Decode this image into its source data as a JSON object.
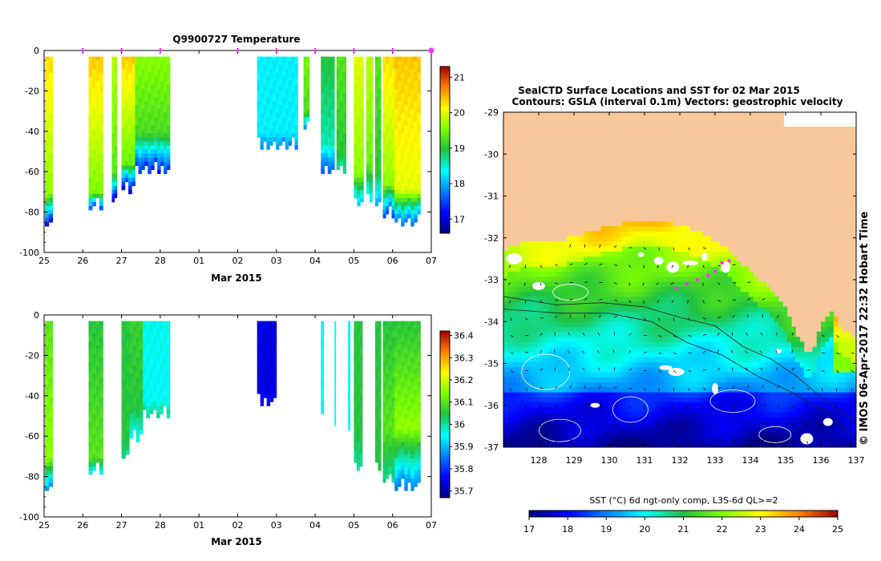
{
  "chart_data": [
    {
      "id": "temp",
      "type": "heatmap",
      "title": "Q9900727  Temperature",
      "xlabel": "Mar 2015",
      "ylabel": "",
      "xticks": [
        "25",
        "26",
        "27",
        "28",
        "01",
        "02",
        "03",
        "04",
        "05",
        "06",
        "07"
      ],
      "xlim": [
        0,
        10
      ],
      "ylim": [
        -100,
        0
      ],
      "yticks": [
        0,
        -20,
        -40,
        -60,
        -80,
        -100
      ],
      "colorbar": {
        "min": 16.6,
        "max": 21.3,
        "ticks": [
          17,
          18,
          19,
          20,
          21
        ]
      },
      "surface_markers": [
        1.0,
        2.0,
        3.0,
        5.0,
        6.0,
        7.0,
        8.0,
        9.0,
        10.0
      ],
      "profiles": [
        {
          "x0": 0.02,
          "x1": 0.22,
          "surface": 20.3,
          "mid": 19.6,
          "mld": -70,
          "bottom": 17.0,
          "depth": -84
        },
        {
          "x0": 1.15,
          "x1": 1.52,
          "surface": 20.4,
          "mid": 19.5,
          "mld": -70,
          "bottom": 17.5,
          "depth": -76
        },
        {
          "x0": 1.75,
          "x1": 1.88,
          "surface": 19.8,
          "mid": 19.3,
          "mld": -60,
          "bottom": 16.8,
          "depth": -74
        },
        {
          "x0": 2.0,
          "x1": 2.35,
          "surface": 20.4,
          "mid": 19.4,
          "mld": -55,
          "bottom": 17.0,
          "depth": -68
        },
        {
          "x0": 2.35,
          "x1": 3.25,
          "surface": 19.6,
          "mid": 19.2,
          "mld": -40,
          "bottom": 17.3,
          "depth": -58
        },
        {
          "x0": 5.5,
          "x1": 6.55,
          "surface": 18.3,
          "mid": 18.3,
          "mld": -40,
          "bottom": 17.8,
          "depth": -46
        },
        {
          "x0": 6.7,
          "x1": 6.85,
          "surface": 19.5,
          "mid": 19.2,
          "mld": -30,
          "bottom": 17.8,
          "depth": -35
        },
        {
          "x0": 7.15,
          "x1": 7.5,
          "surface": 19.0,
          "mid": 18.6,
          "mld": -45,
          "bottom": 17.5,
          "depth": -58
        },
        {
          "x0": 7.55,
          "x1": 7.8,
          "surface": 19.3,
          "mid": 19.0,
          "mld": -50,
          "bottom": 18.6,
          "depth": -58
        },
        {
          "x0": 8.0,
          "x1": 8.25,
          "surface": 20.0,
          "mid": 19.6,
          "mld": -60,
          "bottom": 18.0,
          "depth": -74
        },
        {
          "x0": 8.32,
          "x1": 8.48,
          "surface": 19.8,
          "mid": 19.4,
          "mld": -55,
          "bottom": 18.3,
          "depth": -72
        },
        {
          "x0": 8.55,
          "x1": 8.7,
          "surface": 19.3,
          "mid": 19.0,
          "mld": -60,
          "bottom": 17.9,
          "depth": -74
        },
        {
          "x0": 8.75,
          "x1": 9.05,
          "surface": 20.3,
          "mid": 19.6,
          "mld": -65,
          "bottom": 17.5,
          "depth": -80
        },
        {
          "x0": 9.05,
          "x1": 9.72,
          "surface": 20.4,
          "mid": 20.0,
          "mld": -68,
          "bottom": 17.6,
          "depth": -84
        }
      ]
    },
    {
      "id": "sal",
      "type": "heatmap",
      "title": "",
      "xlabel": "Mar 2015",
      "ylabel": "",
      "xticks": [
        "25",
        "26",
        "27",
        "28",
        "01",
        "02",
        "03",
        "04",
        "05",
        "06",
        "07"
      ],
      "xlim": [
        0,
        10
      ],
      "ylim": [
        -100,
        0
      ],
      "yticks": [
        0,
        -20,
        -40,
        -60,
        -80,
        -100
      ],
      "colorbar": {
        "min": 35.67,
        "max": 36.42,
        "ticks": [
          35.7,
          35.8,
          35.9,
          36,
          36.1,
          36.2,
          36.3,
          36.4
        ]
      },
      "profiles": [
        {
          "x0": 0.02,
          "x1": 0.22,
          "surface": 36.1,
          "mid": 36.15,
          "mld": -70,
          "bottom": 35.85,
          "depth": -84
        },
        {
          "x0": 1.15,
          "x1": 1.52,
          "surface": 36.05,
          "mid": 36.1,
          "mld": -70,
          "bottom": 35.95,
          "depth": -76
        },
        {
          "x0": 2.0,
          "x1": 2.2,
          "surface": 36.05,
          "mid": 36.05,
          "mld": -60,
          "bottom": 36.0,
          "depth": -70
        },
        {
          "x0": 2.2,
          "x1": 2.55,
          "surface": 36.07,
          "mid": 36.05,
          "mld": -45,
          "bottom": 35.95,
          "depth": -60
        },
        {
          "x0": 2.55,
          "x1": 3.25,
          "surface": 35.96,
          "mid": 35.95,
          "mld": -40,
          "bottom": 36.0,
          "depth": -48
        },
        {
          "x0": 5.5,
          "x1": 6.0,
          "surface": 35.74,
          "mid": 35.74,
          "mld": -35,
          "bottom": 35.78,
          "depth": -42
        },
        {
          "x0": 7.15,
          "x1": 7.22,
          "surface": 35.95,
          "mid": 35.95,
          "mld": -40,
          "bottom": 35.95,
          "depth": -45
        },
        {
          "x0": 7.5,
          "x1": 7.53,
          "surface": 35.95,
          "mid": 35.95,
          "mld": -40,
          "bottom": 35.95,
          "depth": -52
        },
        {
          "x0": 7.85,
          "x1": 7.9,
          "surface": 35.95,
          "mid": 35.95,
          "mld": -50,
          "bottom": 35.95,
          "depth": -56
        },
        {
          "x0": 8.0,
          "x1": 8.22,
          "surface": 36.05,
          "mid": 36.05,
          "mld": -55,
          "bottom": 36.0,
          "depth": -74
        },
        {
          "x0": 8.55,
          "x1": 8.7,
          "surface": 36.05,
          "mid": 36.05,
          "mld": -60,
          "bottom": 36.05,
          "depth": -74
        },
        {
          "x0": 8.75,
          "x1": 9.05,
          "surface": 36.05,
          "mid": 36.1,
          "mld": -55,
          "bottom": 36.0,
          "depth": -80
        },
        {
          "x0": 9.05,
          "x1": 9.72,
          "surface": 36.05,
          "mid": 36.15,
          "mld": -55,
          "bottom": 35.85,
          "depth": -84
        }
      ]
    },
    {
      "id": "map",
      "type": "heatmap",
      "title": "SealCTD Surface Locations and SST for 02 Mar 2015",
      "subtitle": "Contours: GSLA (interval 0.1m) Vectors: geostrophic velocity",
      "xlabel": "",
      "ylabel": "",
      "xticks": [
        "128",
        "129",
        "130",
        "131",
        "132",
        "133",
        "134",
        "135",
        "136",
        "137"
      ],
      "yticks": [
        "-29",
        "-30",
        "-31",
        "-32",
        "-33",
        "-34",
        "-35",
        "-36",
        "-37"
      ],
      "xlim": [
        127.0,
        137.0
      ],
      "ylim": [
        -37.0,
        -29.0
      ],
      "colorbar": {
        "label": "SST (°C) 6d ngt-only comp, L3S-6d QL>=2",
        "min": 17,
        "max": 25,
        "ticks": [
          "17",
          "18",
          "19",
          "20",
          "21",
          "22",
          "23",
          "24",
          "25"
        ]
      },
      "colors": {
        "land": "#f8c89c",
        "cloud": "#ffffff",
        "track": "#ff33ff"
      },
      "seal_track": [
        [
          131.9,
          -33.2
        ],
        [
          132.2,
          -33.1
        ],
        [
          132.5,
          -33.0
        ],
        [
          132.8,
          -32.9
        ],
        [
          133.0,
          -32.8
        ],
        [
          133.2,
          -32.6
        ],
        [
          133.4,
          -32.55
        ]
      ],
      "credit": "© IMOS 06-Apr-2017 22:32 Hobart Time"
    }
  ]
}
